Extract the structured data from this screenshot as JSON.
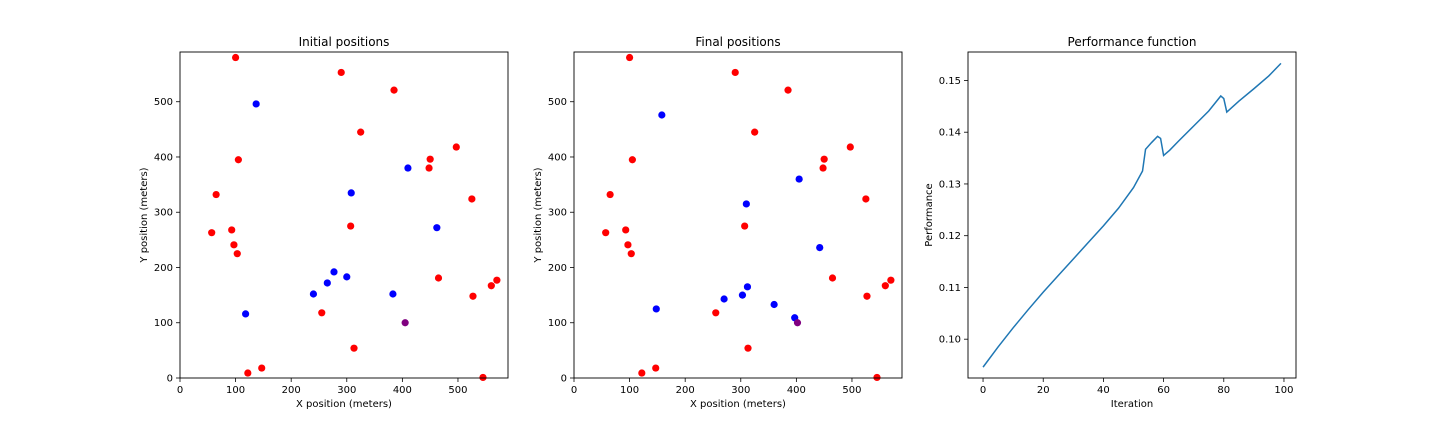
{
  "chart_data": [
    {
      "type": "scatter",
      "title": "Initial positions",
      "xlabel": "X position (meters)",
      "ylabel": "Y position (meters)",
      "xlim": [
        0,
        590
      ],
      "ylim": [
        0,
        590
      ],
      "xticks": [
        "0",
        "100",
        "200",
        "300",
        "400",
        "500"
      ],
      "yticks": [
        "0",
        "100",
        "200",
        "300",
        "400",
        "500"
      ],
      "series": [
        {
          "color": "#ff0000",
          "points": [
            [
              100,
              580
            ],
            [
              290,
              553
            ],
            [
              385,
              521
            ],
            [
              325,
              445
            ],
            [
              105,
              395
            ],
            [
              450,
              396
            ],
            [
              497,
              418
            ],
            [
              448,
              380
            ],
            [
              65,
              332
            ],
            [
              525,
              324
            ],
            [
              93,
              268
            ],
            [
              307,
              275
            ],
            [
              57,
              263
            ],
            [
              97,
              241
            ],
            [
              103,
              225
            ],
            [
              465,
              181
            ],
            [
              570,
              177
            ],
            [
              560,
              167
            ],
            [
              527,
              148
            ],
            [
              255,
              118
            ],
            [
              313,
              54
            ],
            [
              147,
              18
            ],
            [
              122,
              9
            ],
            [
              545,
              1
            ]
          ]
        },
        {
          "color": "#0000ff",
          "points": [
            [
              137,
              496
            ],
            [
              410,
              380
            ],
            [
              308,
              335
            ],
            [
              462,
              272
            ],
            [
              277,
              192
            ],
            [
              300,
              183
            ],
            [
              265,
              172
            ],
            [
              383,
              152
            ],
            [
              240,
              152
            ],
            [
              118,
              116
            ]
          ]
        },
        {
          "color": "#800080",
          "points": [
            [
              405,
              100
            ]
          ]
        }
      ]
    },
    {
      "type": "scatter",
      "title": "Final positions",
      "xlabel": "X position (meters)",
      "ylabel": "Y position (meters)",
      "xlim": [
        0,
        590
      ],
      "ylim": [
        0,
        590
      ],
      "xticks": [
        "0",
        "100",
        "200",
        "300",
        "400",
        "500"
      ],
      "yticks": [
        "0",
        "100",
        "200",
        "300",
        "400",
        "500"
      ],
      "series": [
        {
          "color": "#ff0000",
          "points": [
            [
              100,
              580
            ],
            [
              290,
              553
            ],
            [
              385,
              521
            ],
            [
              325,
              445
            ],
            [
              105,
              395
            ],
            [
              450,
              396
            ],
            [
              497,
              418
            ],
            [
              448,
              380
            ],
            [
              65,
              332
            ],
            [
              525,
              324
            ],
            [
              93,
              268
            ],
            [
              307,
              275
            ],
            [
              57,
              263
            ],
            [
              97,
              241
            ],
            [
              103,
              225
            ],
            [
              465,
              181
            ],
            [
              570,
              177
            ],
            [
              560,
              167
            ],
            [
              527,
              148
            ],
            [
              255,
              118
            ],
            [
              313,
              54
            ],
            [
              147,
              18
            ],
            [
              122,
              9
            ],
            [
              545,
              1
            ]
          ]
        },
        {
          "color": "#0000ff",
          "points": [
            [
              158,
              476
            ],
            [
              405,
              360
            ],
            [
              310,
              315
            ],
            [
              442,
              236
            ],
            [
              270,
              143
            ],
            [
              312,
              165
            ],
            [
              303,
              150
            ],
            [
              360,
              133
            ],
            [
              148,
              125
            ],
            [
              397,
              109
            ]
          ]
        },
        {
          "color": "#800080",
          "points": [
            [
              402,
              100
            ]
          ]
        }
      ]
    },
    {
      "type": "line",
      "title": "Performance function",
      "xlabel": "Iteration",
      "ylabel": "Performance",
      "xlim": [
        -5,
        104
      ],
      "ylim": [
        0.0925,
        0.1555
      ],
      "xticks": [
        "0",
        "20",
        "40",
        "60",
        "80",
        "100"
      ],
      "yticks": [
        "0.10",
        "0.11",
        "0.12",
        "0.13",
        "0.14",
        "0.15"
      ],
      "series": [
        {
          "color": "#1f77b4",
          "points": [
            [
              0,
              0.0946
            ],
            [
              5,
              0.0985
            ],
            [
              10,
              0.1022
            ],
            [
              15,
              0.1057
            ],
            [
              20,
              0.1091
            ],
            [
              25,
              0.1123
            ],
            [
              30,
              0.1155
            ],
            [
              35,
              0.1187
            ],
            [
              40,
              0.1219
            ],
            [
              45,
              0.1253
            ],
            [
              50,
              0.1293
            ],
            [
              53,
              0.1325
            ],
            [
              54,
              0.1367
            ],
            [
              56,
              0.138
            ],
            [
              58,
              0.1392
            ],
            [
              59,
              0.1388
            ],
            [
              60,
              0.1355
            ],
            [
              62,
              0.1365
            ],
            [
              65,
              0.1383
            ],
            [
              70,
              0.1412
            ],
            [
              75,
              0.1441
            ],
            [
              79,
              0.147
            ],
            [
              80,
              0.1465
            ],
            [
              81,
              0.1439
            ],
            [
              85,
              0.146
            ],
            [
              90,
              0.1484
            ],
            [
              95,
              0.1509
            ],
            [
              99,
              0.1533
            ]
          ]
        }
      ]
    }
  ]
}
